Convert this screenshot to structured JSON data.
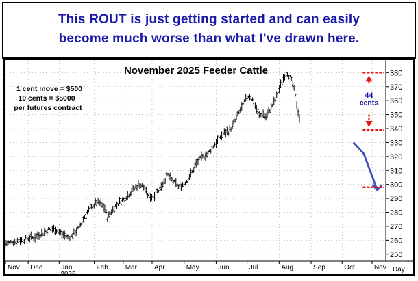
{
  "headline": {
    "line1": "This ROUT is just getting started and can easily",
    "line2": "become much worse than what I've drawn here."
  },
  "chart_data": {
    "type": "bar",
    "title": "November 2025 Feeder Cattle",
    "notes": [
      "1 cent move = $500",
      "10 cents = $5000",
      "per futures contract"
    ],
    "y_axis": {
      "ticks": [
        250,
        260,
        270,
        280,
        290,
        300,
        310,
        320,
        330,
        340,
        350,
        360,
        370,
        380
      ],
      "ylim": [
        245,
        388
      ],
      "position": "right"
    },
    "x_axis": {
      "month_labels": [
        "Nov",
        "Dec",
        "Jan",
        "Feb",
        "Mar",
        "Apr",
        "May",
        "Jun",
        "Jul",
        "Aug",
        "Sep",
        "Oct",
        "Nov"
      ],
      "year_label": "2025",
      "corner_label": "Day"
    },
    "series": [
      {
        "values": [
          [
            0,
            258
          ],
          [
            4,
            258
          ],
          [
            8,
            259
          ],
          [
            12,
            260
          ],
          [
            16,
            260
          ],
          [
            20,
            261
          ],
          [
            24,
            262
          ],
          [
            28,
            262
          ],
          [
            32,
            264
          ],
          [
            36,
            265
          ],
          [
            40,
            267
          ],
          [
            44,
            268
          ],
          [
            48,
            268
          ],
          [
            52,
            266
          ],
          [
            56,
            264
          ],
          [
            60,
            262
          ],
          [
            64,
            263
          ],
          [
            68,
            266
          ],
          [
            72,
            270
          ],
          [
            76,
            276
          ],
          [
            80,
            281
          ],
          [
            84,
            284
          ],
          [
            88,
            287
          ],
          [
            92,
            286
          ],
          [
            96,
            283
          ],
          [
            99,
            276
          ],
          [
            102,
            280
          ],
          [
            106,
            284
          ],
          [
            110,
            287
          ],
          [
            114,
            289
          ],
          [
            118,
            292
          ],
          [
            122,
            295
          ],
          [
            126,
            298
          ],
          [
            130,
            300
          ],
          [
            134,
            298
          ],
          [
            138,
            292
          ],
          [
            142,
            291
          ],
          [
            146,
            294
          ],
          [
            150,
            298
          ],
          [
            154,
            303
          ],
          [
            157,
            307
          ],
          [
            160,
            304
          ],
          [
            164,
            301
          ],
          [
            168,
            298
          ],
          [
            172,
            300
          ],
          [
            176,
            303
          ],
          [
            180,
            308
          ],
          [
            184,
            314
          ],
          [
            188,
            318
          ],
          [
            192,
            320
          ],
          [
            196,
            322
          ],
          [
            200,
            326
          ],
          [
            204,
            330
          ],
          [
            208,
            334
          ],
          [
            212,
            337
          ],
          [
            216,
            338
          ],
          [
            220,
            342
          ],
          [
            224,
            348
          ],
          [
            228,
            354
          ],
          [
            232,
            360
          ],
          [
            236,
            364
          ],
          [
            240,
            360
          ],
          [
            243,
            354
          ],
          [
            246,
            349
          ],
          [
            249,
            351
          ],
          [
            252,
            348
          ],
          [
            255,
            352
          ],
          [
            258,
            356
          ],
          [
            261,
            360
          ],
          [
            264,
            366
          ],
          [
            267,
            372
          ],
          [
            270,
            378
          ],
          [
            273,
            380
          ],
          [
            276,
            376
          ],
          [
            278,
            372
          ],
          [
            280,
            366
          ],
          [
            282,
            358
          ],
          [
            284,
            350
          ],
          [
            286,
            343
          ]
        ]
      }
    ],
    "projection": {
      "points": [
        [
          337,
          330
        ],
        [
          347,
          322
        ],
        [
          360,
          296
        ]
      ],
      "color": "#3a4fb8"
    },
    "annotations": {
      "high_level": 380,
      "mid_level": 339,
      "target_level": 298,
      "move_label_number": "44",
      "move_label_unit": "cents",
      "line_color": "#ee1111",
      "label_color": "#1a1aa8"
    },
    "grid": true,
    "legend": "none"
  }
}
